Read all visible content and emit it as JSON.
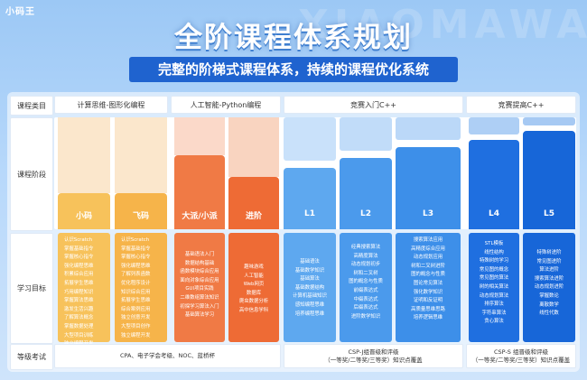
{
  "brand": "小码王",
  "watermark": "XIAOMAWANG",
  "title": "全阶课程体系规划",
  "subtitle": "完整的阶梯式课程体系，持续的课程优化系统",
  "row_labels": {
    "category": "课程类目",
    "stage": "课程阶段",
    "goals": "学习目标",
    "exam": "等级考试"
  },
  "categories": [
    {
      "label": "计算思维-图形化编程"
    },
    {
      "label": "人工智能-Python编程"
    },
    {
      "label": "竞赛入门C++"
    },
    {
      "label": "竞赛提高C++"
    }
  ],
  "stages": [
    {
      "label": "小码",
      "color": "#f7c25b",
      "light": "#fbe3c4",
      "goals": [
        "认识Scratch",
        "掌握基础指令",
        "掌握核心指令",
        "强化编程思维",
        "积累综合应用",
        "拓展学生思维",
        "巧用编程知识",
        "掌握算法思维",
        "激发生活兴趣",
        "了解算法概念",
        "掌握数据处理",
        "大型项目训练",
        "独立编程开发"
      ]
    },
    {
      "label": "飞码",
      "color": "#f6b44a",
      "light": "#fbdfbd",
      "goals": [
        "认识Scratch",
        "掌握基础指令",
        "掌握核心指令",
        "强化编程思维",
        "了解列表函数",
        "优化程序设计",
        "知识综合应用",
        "拓展学生思维",
        "综合案例应用",
        "独立创意开发",
        "大型项目创作",
        "独立编程开发"
      ]
    },
    {
      "label": "大派/小派",
      "color": "#f07a45",
      "light": "#fbd9c9",
      "goals": [
        "基础语法入门",
        "数据结构基础",
        "函数模块综合应用",
        "面向对象综合应用",
        "GUI项目实践",
        "二维数组算法知识",
        "初探学习算法入门",
        "基础算法学习"
      ]
    },
    {
      "label": "进阶",
      "color": "#ee6b35",
      "light": "#f9d4c0",
      "goals": [
        "趣味游戏",
        "人工智能",
        "Web网页",
        "数据库",
        "爬虫数据分析",
        "高中信息学科"
      ]
    },
    {
      "label": "L1",
      "color": "#5ea8ef",
      "light": "#c9e1fa",
      "goals": [
        "基础语法",
        "基础数学知识",
        "基础算法",
        "基础数据结构",
        "计算机基础知识",
        "感知编程思维",
        "培养编程思维"
      ]
    },
    {
      "label": "L2",
      "color": "#4b9aec",
      "light": "#c1dcf9",
      "goals": [
        "经典搜索算法",
        "高精度算法",
        "动态规划初步",
        "树和二叉树",
        "图的概念与性质",
        "前缀表达式",
        "中缀表达式",
        "后缀表达式",
        "进阶数学知识"
      ]
    },
    {
      "label": "L3",
      "color": "#3d8fe9",
      "light": "#bbd8f8",
      "goals": [
        "搜索算法应用",
        "高精度综合应用",
        "动态规划应用",
        "树和二叉树进阶",
        "图的概念与性质",
        "图论常见算法",
        "强化数学知识",
        "证明和反证明",
        "高质量思维思路",
        "培养逻辑思维"
      ]
    },
    {
      "label": "L4",
      "color": "#1f6fe0",
      "light": "#aecff5",
      "goals": [
        "STL模板",
        "线性结构",
        "特殊树的学习",
        "常见图的概念",
        "常见图的算法",
        "树的相关算法",
        "动态规划算法",
        "排序算法",
        "字符串算法",
        "贪心算法"
      ]
    },
    {
      "label": "L5",
      "color": "#1766d8",
      "light": "#a6c9f3",
      "goals": [
        "特殊树进阶",
        "常见图进阶",
        "算法进阶",
        "搜索算法进阶",
        "动态规划进阶",
        "掌握数论",
        "离散数学",
        "线性代数"
      ]
    }
  ],
  "exams": {
    "scratch_python": {
      "line1": "CPA、电子学会考级、NOC、蓝桥杯"
    },
    "csp_j": {
      "line1": "CSP-J组晋级和评级",
      "line2": "（一等奖/二等奖/三等奖）知识点覆盖"
    },
    "csp_s": {
      "line1": "CSP-S 组晋级和评级",
      "line2": "（一等奖/二等奖/三等奖）知识点覆盖"
    }
  }
}
